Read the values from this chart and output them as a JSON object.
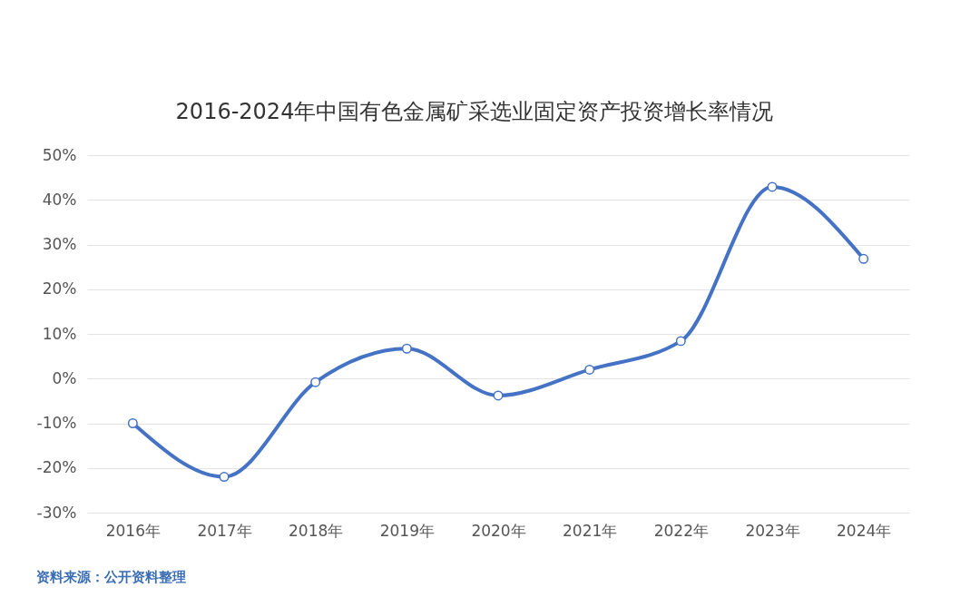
{
  "chart_data": {
    "type": "line",
    "title": "2016-2024年中国有色金属矿采选业固定资产投资增长率情况",
    "categories": [
      "2016年",
      "2017年",
      "2018年",
      "2019年",
      "2020年",
      "2021年",
      "2022年",
      "2023年",
      "2024年"
    ],
    "series": [
      {
        "color": "#4472c4",
        "values": [
          -10,
          -22,
          -0.8,
          6.7,
          -3.8,
          2.0,
          8.4,
          42.9,
          26.8
        ]
      }
    ],
    "ylim": [
      -30,
      50
    ],
    "yticks": [
      {
        "value": -30,
        "label": "-30%"
      },
      {
        "value": -20,
        "label": "-20%"
      },
      {
        "value": -10,
        "label": "-10%"
      },
      {
        "value": 0,
        "label": "0%"
      },
      {
        "value": 10,
        "label": "10%"
      },
      {
        "value": 20,
        "label": "20%"
      },
      {
        "value": 30,
        "label": "30%"
      },
      {
        "value": 40,
        "label": "40%"
      },
      {
        "value": 50,
        "label": "50%"
      }
    ],
    "grid": "y",
    "marker": "circle",
    "line_style": "solid",
    "annotations": [
      "资料来源：公开资料整理"
    ]
  }
}
